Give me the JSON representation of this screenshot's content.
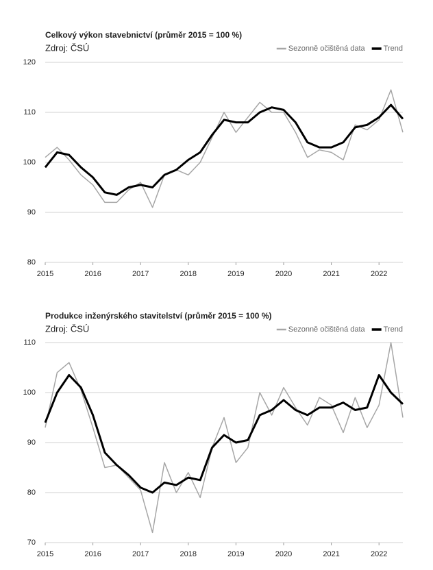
{
  "chart_data": [
    {
      "type": "line",
      "title": "Celkový výkon stavebnictví (průměr 2015 = 100 %)",
      "subtitle": "Zdroj: ČSÚ",
      "x": [
        2015,
        2015.25,
        2015.5,
        2015.75,
        2016,
        2016.25,
        2016.5,
        2016.75,
        2017,
        2017.25,
        2017.5,
        2017.75,
        2018,
        2018.25,
        2018.5,
        2018.75,
        2019,
        2019.25,
        2019.5,
        2019.75,
        2020,
        2020.25,
        2020.5,
        2020.75,
        2021,
        2021.25,
        2021.5,
        2021.75,
        2022,
        2022.25,
        2022.5
      ],
      "series": [
        {
          "name": "Sezonně očištěná data",
          "color": "#a6a6a6",
          "values": [
            101,
            103,
            100.5,
            97.5,
            95.5,
            92,
            92,
            94.5,
            96,
            91,
            97.5,
            98.5,
            97.5,
            100,
            105,
            110,
            106,
            109,
            112,
            110,
            110,
            106,
            101,
            102.5,
            102,
            100.5,
            107.5,
            106.5,
            108.5,
            114.5,
            106
          ]
        },
        {
          "name": "Trend",
          "color": "#000000",
          "values": [
            99,
            102,
            101.5,
            99,
            97,
            94,
            93.5,
            95,
            95.5,
            95,
            97.5,
            98.5,
            100.5,
            102,
            105.5,
            108.5,
            108,
            108,
            110,
            111,
            110.5,
            108,
            104,
            103,
            103,
            104,
            107,
            107.5,
            109,
            111.5,
            108.7
          ]
        }
      ],
      "xlim": [
        2015,
        2022.5
      ],
      "xticks": [
        2015,
        2016,
        2017,
        2018,
        2019,
        2020,
        2021,
        2022
      ],
      "ylim": [
        80,
        120
      ],
      "yticks": [
        80,
        90,
        100,
        110,
        120
      ],
      "grid": true,
      "legend": "top-right"
    },
    {
      "type": "line",
      "title": "Produkce inženýrského stavitelství (průměr 2015 = 100 %)",
      "subtitle": "Zdroj: ČSÚ",
      "x": [
        2015,
        2015.25,
        2015.5,
        2015.75,
        2016,
        2016.25,
        2016.5,
        2016.75,
        2017,
        2017.25,
        2017.5,
        2017.75,
        2018,
        2018.25,
        2018.5,
        2018.75,
        2019,
        2019.25,
        2019.5,
        2019.75,
        2020,
        2020.25,
        2020.5,
        2020.75,
        2021,
        2021.25,
        2021.5,
        2021.75,
        2022,
        2022.25,
        2022.5
      ],
      "series": [
        {
          "name": "Sezonně očištěná data",
          "color": "#a6a6a6",
          "values": [
            93,
            104,
            106,
            100.5,
            93,
            85,
            85.5,
            83,
            80.5,
            72,
            86,
            80,
            84,
            79,
            89,
            95,
            86,
            89,
            100,
            95.5,
            101,
            97,
            93.5,
            99,
            97.5,
            92,
            99,
            93,
            97.5,
            110,
            95
          ]
        },
        {
          "name": "Trend",
          "color": "#000000",
          "values": [
            94,
            100,
            103.5,
            101,
            95.5,
            88,
            85.5,
            83.5,
            81,
            80,
            82,
            81.5,
            83,
            82.5,
            89,
            91.5,
            90,
            90.5,
            95.5,
            96.5,
            98.5,
            96.5,
            95.5,
            97,
            97,
            98,
            96.5,
            97,
            103.5,
            100,
            97.7
          ]
        }
      ],
      "xlim": [
        2015,
        2022.5
      ],
      "xticks": [
        2015,
        2016,
        2017,
        2018,
        2019,
        2020,
        2021,
        2022
      ],
      "ylim": [
        70,
        110
      ],
      "yticks": [
        70,
        80,
        90,
        100,
        110
      ],
      "grid": true,
      "legend": "top-right"
    }
  ]
}
